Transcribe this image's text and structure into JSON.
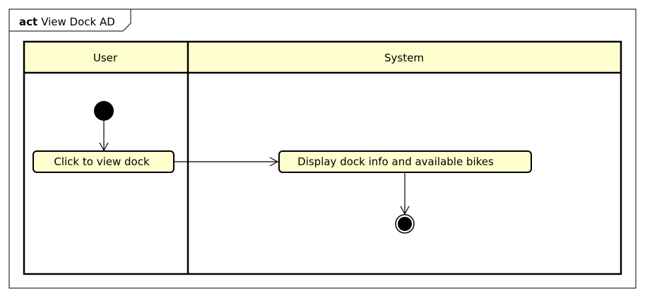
{
  "frame": {
    "keyword": "act",
    "title": "View Dock AD"
  },
  "swimlanes": [
    {
      "title": "User"
    },
    {
      "title": "System"
    }
  ],
  "actions": [
    {
      "label": "Click to view dock"
    },
    {
      "label": "Display dock info and available bikes"
    }
  ],
  "colors": {
    "lane_header_fill": "#FEFECE",
    "action_fill": "#FEFECE",
    "stroke": "#000000",
    "frame_stroke": "#000000"
  }
}
